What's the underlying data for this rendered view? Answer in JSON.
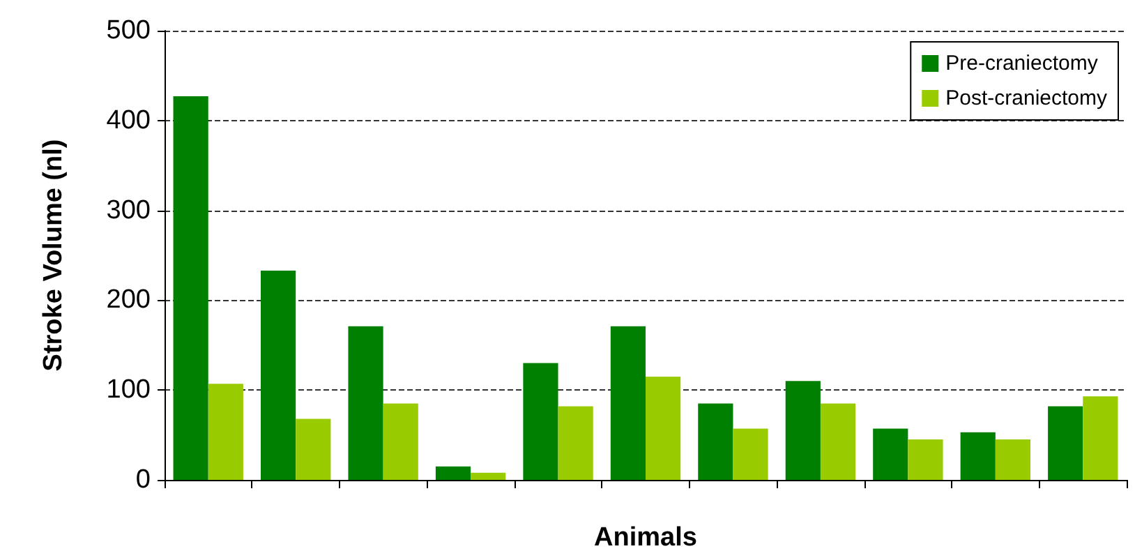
{
  "chart_data": {
    "type": "bar",
    "xlabel": "Animals",
    "ylabel": "Stroke Volume (nl)",
    "categories": [
      null,
      null,
      null,
      null,
      null,
      null,
      null,
      null,
      null,
      null,
      null
    ],
    "series": [
      {
        "name": "Pre-craniectomy",
        "color": "#008000",
        "values": [
          427,
          233,
          171,
          15,
          130,
          171,
          85,
          110,
          57,
          53,
          82
        ]
      },
      {
        "name": "Post-craniectomy",
        "color": "#99cc00",
        "values": [
          107,
          68,
          85,
          8,
          82,
          115,
          57,
          85,
          45,
          45,
          93
        ]
      }
    ],
    "ylim": [
      0,
      500
    ],
    "yticks": [
      0,
      100,
      200,
      300,
      400,
      500
    ],
    "grid": "y",
    "line_style": "dashed",
    "legend": "top right"
  }
}
